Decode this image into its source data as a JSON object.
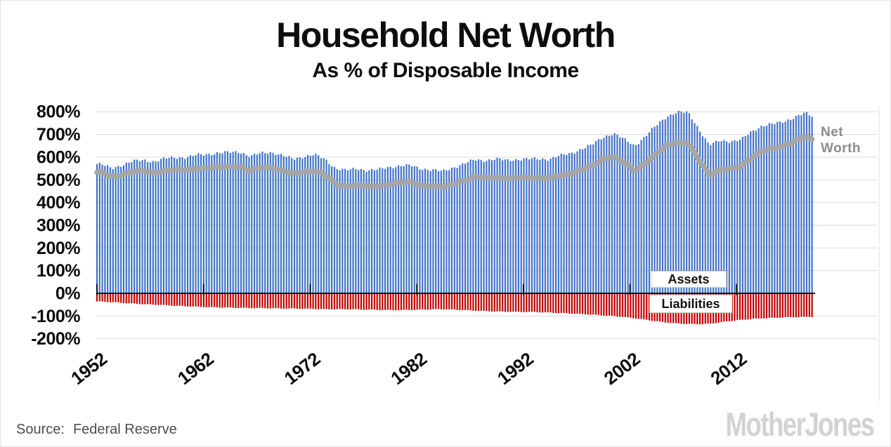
{
  "page": {
    "title": "Household Net Worth",
    "subtitle": "As % of Disposable Income"
  },
  "annotations": {
    "assets_label": "Assets",
    "liabilities_label": "Liabilities",
    "net_worth_line1": "Net",
    "net_worth_line2": "Worth"
  },
  "source": {
    "prefix": "Source:",
    "text": "Federal Reserve"
  },
  "watermark": "MotherJones",
  "colors": {
    "assets": "#4472C4",
    "liabilities": "#C00000",
    "net_worth": "#A6A6A6",
    "gridline": "#D9D9D9",
    "axis": "#000000",
    "net_worth_label": "#8C8C8C",
    "watermark": "#D2D2D2"
  },
  "chart_data": {
    "type": "bar",
    "title": "Household Net Worth",
    "subtitle": "As % of Disposable Income",
    "xlabel": "",
    "ylabel": "",
    "grid": true,
    "ylim": [
      -200,
      800
    ],
    "ytick_step": 100,
    "y_tick_labels": [
      "800%",
      "700%",
      "600%",
      "500%",
      "400%",
      "300%",
      "200%",
      "100%",
      "0%",
      "-100%",
      "-200%"
    ],
    "x_tick_labels": [
      "1952",
      "1962",
      "1972",
      "1982",
      "1992",
      "2002",
      "2012"
    ],
    "x_tick_years": [
      1952,
      1962,
      1972,
      1982,
      1992,
      2002,
      2012
    ],
    "resolution_note": "Quarterly bars from 1952Q1 to 2019Q1; values below are annual mid-year anchor readings (% of disposable income)",
    "years": [
      1952,
      1953,
      1954,
      1955,
      1956,
      1957,
      1958,
      1959,
      1960,
      1961,
      1962,
      1963,
      1964,
      1965,
      1966,
      1967,
      1968,
      1969,
      1970,
      1971,
      1972,
      1973,
      1974,
      1975,
      1976,
      1977,
      1978,
      1979,
      1980,
      1981,
      1982,
      1983,
      1984,
      1985,
      1986,
      1987,
      1988,
      1989,
      1990,
      1991,
      1992,
      1993,
      1994,
      1995,
      1996,
      1997,
      1998,
      1999,
      2000,
      2001,
      2002,
      2003,
      2004,
      2005,
      2006,
      2007,
      2008,
      2009,
      2010,
      2011,
      2012,
      2013,
      2014,
      2015,
      2016,
      2017,
      2018,
      2019
    ],
    "series": [
      {
        "name": "Assets",
        "type": "bar",
        "color": "#4472C4",
        "values": [
          569,
          551,
          566,
          582,
          587,
          580,
          594,
          599,
          599,
          609,
          613,
          618,
          621,
          624,
          603,
          618,
          622,
          607,
          592,
          603,
          611,
          590,
          550,
          542,
          549,
          542,
          545,
          556,
          562,
          563,
          549,
          544,
          537,
          554,
          571,
          588,
          586,
          592,
          586,
          590,
          592,
          592,
          592,
          606,
          616,
          636,
          654,
          687,
          705,
          679,
          650,
          691,
          738,
          779,
          798,
          797,
          726,
          652,
          673,
          670,
          677,
          713,
          740,
          746,
          756,
          777,
          794,
          771
        ]
      },
      {
        "name": "Liabilities",
        "type": "bar",
        "color": "#C00000",
        "values": [
          -36,
          -39,
          -42,
          -45,
          -48,
          -50,
          -52,
          -55,
          -57,
          -59,
          -61,
          -62,
          -63,
          -64,
          -65,
          -65,
          -66,
          -67,
          -67,
          -68,
          -69,
          -70,
          -70,
          -70,
          -71,
          -72,
          -73,
          -74,
          -74,
          -73,
          -72,
          -71,
          -70,
          -72,
          -74,
          -76,
          -78,
          -80,
          -81,
          -82,
          -82,
          -83,
          -85,
          -87,
          -89,
          -91,
          -94,
          -97,
          -100,
          -104,
          -110,
          -116,
          -123,
          -129,
          -133,
          -135,
          -136,
          -134,
          -128,
          -122,
          -117,
          -113,
          -110,
          -108,
          -106,
          -105,
          -104,
          -103
        ]
      },
      {
        "name": "Net Worth",
        "type": "line",
        "color": "#A6A6A6",
        "values": [
          533,
          512,
          524,
          537,
          539,
          530,
          542,
          544,
          542,
          550,
          552,
          556,
          558,
          560,
          538,
          553,
          556,
          540,
          525,
          535,
          542,
          520,
          480,
          472,
          478,
          470,
          472,
          482,
          488,
          490,
          477,
          473,
          467,
          482,
          497,
          512,
          508,
          512,
          505,
          508,
          510,
          509,
          507,
          519,
          527,
          545,
          560,
          590,
          605,
          575,
          540,
          575,
          615,
          650,
          665,
          662,
          590,
          518,
          545,
          548,
          560,
          600,
          630,
          638,
          650,
          672,
          690,
          668
        ]
      }
    ]
  }
}
